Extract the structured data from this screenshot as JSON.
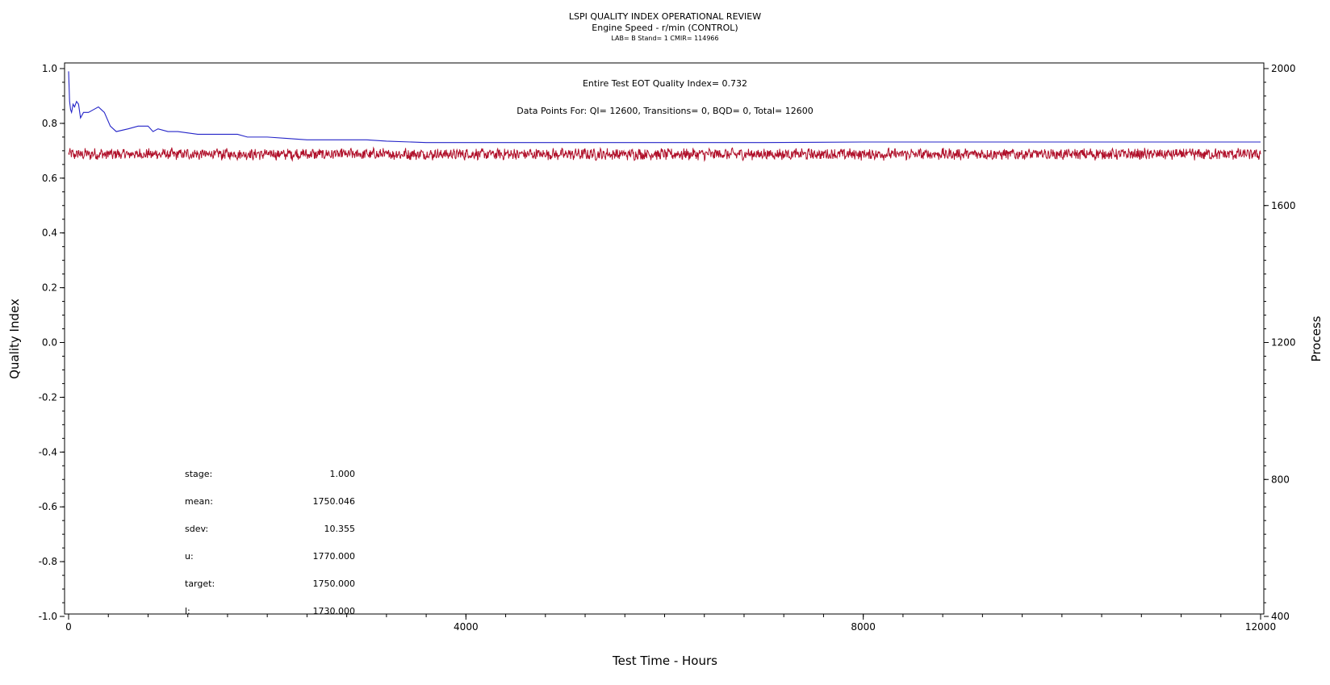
{
  "header": {
    "title": "LSPI QUALITY INDEX OPERATIONAL REVIEW",
    "subtitle": "Engine Speed - r/min (CONTROL)",
    "meta": "LAB= B Stand= 1 CMIR= 114966"
  },
  "annotations": {
    "qi_line": "Entire Test EOT Quality Index=   0.732",
    "points_line": "Data Points For: QI= 12600, Transitions=     0, BQD=     0, Total= 12600"
  },
  "stats": [
    {
      "label": "stage:",
      "value": "1.000"
    },
    {
      "label": "mean:",
      "value": "1750.046"
    },
    {
      "label": "sdev:",
      "value": "10.355"
    },
    {
      "label": "u:",
      "value": "1770.000"
    },
    {
      "label": "target:",
      "value": "1750.000"
    },
    {
      "label": "l:",
      "value": "1730.000"
    }
  ],
  "colors": {
    "quality_index": "#2424c8",
    "process": "#b0102a",
    "axis": "#000000"
  },
  "chart_data": {
    "type": "line",
    "title": "LSPI QUALITY INDEX OPERATIONAL REVIEW",
    "xlabel": "Test Time - Hours",
    "ylabel": "Quality Index",
    "y2label": "Process",
    "xlim": [
      0,
      12000
    ],
    "ylim": [
      -1.0,
      1.0
    ],
    "y2lim": [
      400,
      2000
    ],
    "x_ticks": [
      "0",
      "4000",
      "8000",
      "12000"
    ],
    "y_ticks": [
      "1.0",
      "0.8",
      "0.6",
      "0.4",
      "0.2",
      "0.0",
      "-0.2",
      "-0.4",
      "-0.6",
      "-0.8",
      "-1.0"
    ],
    "y2_ticks": [
      "2000",
      "1600",
      "1200",
      "800",
      "400"
    ],
    "grid": false,
    "series": [
      {
        "axis": "left",
        "x": [
          0,
          10,
          20,
          30,
          45,
          60,
          80,
          100,
          120,
          150,
          200,
          250,
          300,
          330,
          360,
          420,
          480,
          600,
          700,
          800,
          850,
          900,
          1000,
          1100,
          1300,
          1500,
          1700,
          1800,
          2000,
          2200,
          2400,
          2600,
          2800,
          3000,
          3200,
          3600,
          4000,
          4400,
          5000,
          6000,
          7000,
          8000,
          9000,
          10000,
          11000,
          12000
        ],
        "values": [
          0.99,
          0.88,
          0.85,
          0.84,
          0.87,
          0.86,
          0.88,
          0.87,
          0.82,
          0.84,
          0.84,
          0.85,
          0.86,
          0.85,
          0.84,
          0.79,
          0.77,
          0.78,
          0.79,
          0.79,
          0.77,
          0.78,
          0.77,
          0.77,
          0.76,
          0.76,
          0.76,
          0.75,
          0.75,
          0.745,
          0.74,
          0.74,
          0.74,
          0.74,
          0.735,
          0.73,
          0.73,
          0.73,
          0.73,
          0.73,
          0.73,
          0.732,
          0.732,
          0.732,
          0.732,
          0.732
        ]
      },
      {
        "axis": "right",
        "x_range": [
          0,
          12000
        ],
        "points": 12600,
        "mean": 1750.046,
        "sdev": 10.355,
        "min": 1720,
        "max": 1780
      }
    ]
  }
}
